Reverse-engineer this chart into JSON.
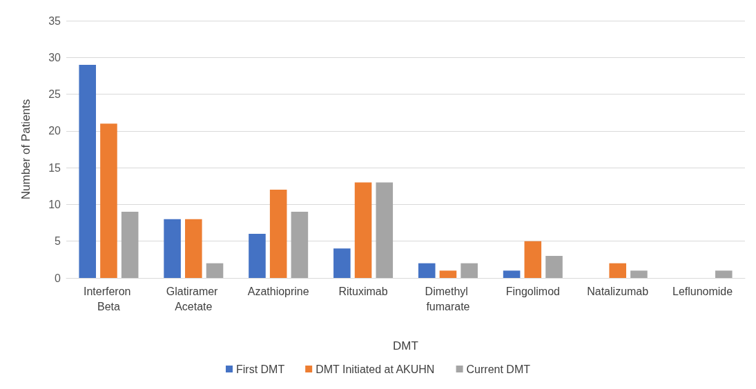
{
  "chart_data": {
    "type": "bar",
    "xlabel": "DMT",
    "ylabel": "Number of Patients",
    "categories": [
      "Interferon Beta",
      "Glatiramer Acetate",
      "Azathioprine",
      "Rituximab",
      "Dimethyl fumarate",
      "Fingolimod",
      "Natalizumab",
      "Leflunomide"
    ],
    "series": [
      {
        "name": "First DMT",
        "color": "#4472c4",
        "values": [
          29,
          8,
          6,
          4,
          2,
          1,
          0,
          0
        ]
      },
      {
        "name": "DMT Initiated at AKUHN",
        "color": "#ed7d31",
        "values": [
          21,
          8,
          12,
          13,
          1,
          5,
          2,
          0
        ]
      },
      {
        "name": "Current DMT",
        "color": "#a5a5a5",
        "values": [
          9,
          2,
          9,
          13,
          2,
          3,
          1,
          1
        ]
      }
    ],
    "ylim": [
      0,
      35
    ],
    "yticks": [
      0,
      5,
      10,
      15,
      20,
      25,
      30,
      35
    ],
    "grid": "y",
    "legend": "bottom"
  }
}
